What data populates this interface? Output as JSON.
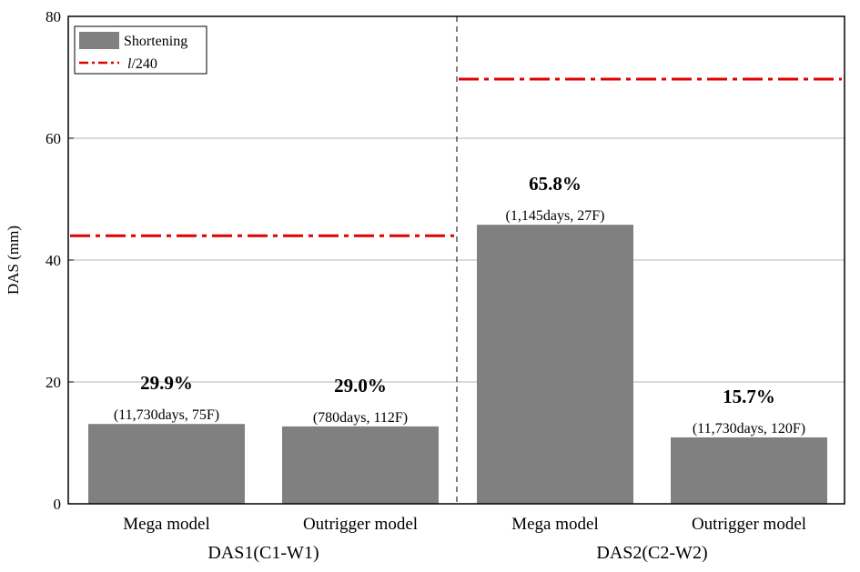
{
  "chart_data": {
    "type": "bar",
    "ylabel": "DAS (mm)",
    "ylim": [
      0,
      80
    ],
    "yticks": [
      "0",
      "20",
      "40",
      "60",
      "80"
    ],
    "grid": "horizontal",
    "legend_position": "top-left",
    "legend": [
      {
        "label": "Shortening",
        "kind": "bar",
        "color": "#808080"
      },
      {
        "label": "/240",
        "prefix_italic": "l",
        "kind": "dash-dot line",
        "color": "#e00000"
      }
    ],
    "groups": [
      {
        "label": "DAS1(C1-W1)",
        "limit_line": 44
      },
      {
        "label": "DAS2(C2-W2)",
        "limit_line": 69.7
      }
    ],
    "bars": [
      {
        "category": "Mega model",
        "group": 0,
        "value": 13.1,
        "percent_label": "29.9%",
        "note": "(11,730days, 75F)"
      },
      {
        "category": "Outrigger model",
        "group": 0,
        "value": 12.7,
        "percent_label": "29.0%",
        "note": "(780days, 112F)"
      },
      {
        "category": "Mega model",
        "group": 1,
        "value": 45.8,
        "percent_label": "65.8%",
        "note": "(1,145days, 27F)"
      },
      {
        "category": "Outrigger model",
        "group": 1,
        "value": 10.9,
        "percent_label": "15.7%",
        "note": "(11,730days, 120F)"
      }
    ],
    "colors": {
      "bar": "#808080",
      "limit": "#e00000",
      "grid": "#b4b4b4"
    }
  }
}
